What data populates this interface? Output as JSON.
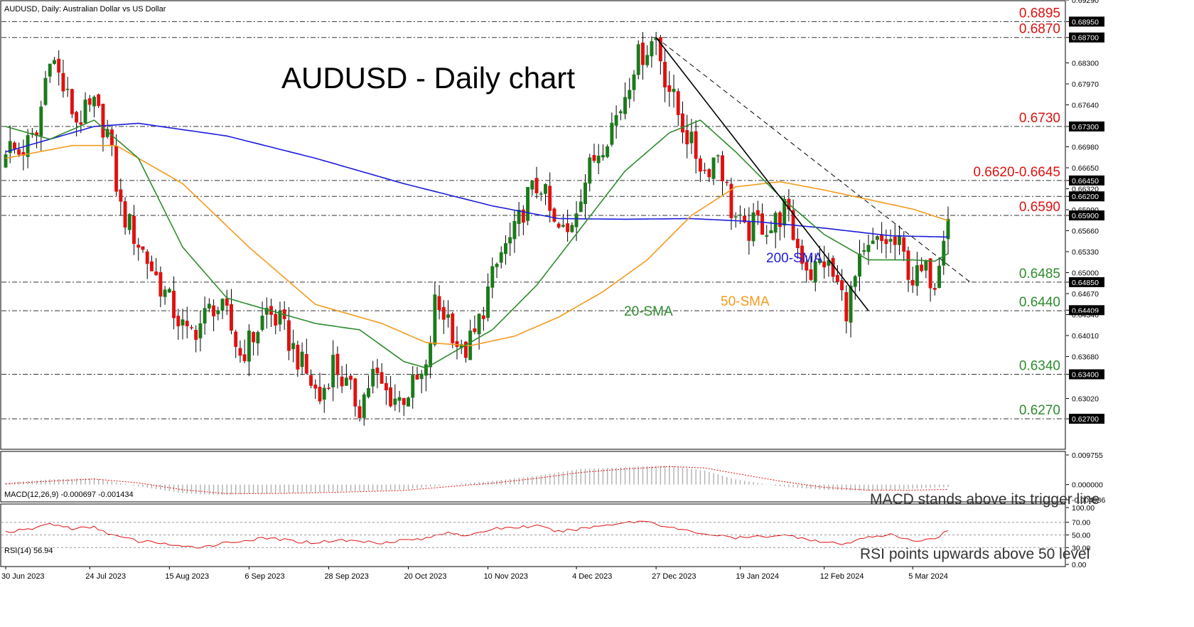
{
  "window": {
    "header": "AUDUSD, Daily:  Australian Dollar vs US Dollar",
    "title": "AUDUSD - Daily chart"
  },
  "colors": {
    "bull": "#1a7a1a",
    "bear": "#e01010",
    "sma20": "#2e8b2e",
    "sma50": "#f59a1c",
    "sma200": "#1c1cdc",
    "level_label": "#e01010",
    "support_label": "#2e8b2e",
    "grid": "#555555"
  },
  "annotations": {
    "sma20": "20-SMA",
    "sma50": "50-SMA",
    "sma200": "200-SMA",
    "macd_note": "MACD stands above its trigger line",
    "rsi_note": "RSI points upwards above 50 level"
  },
  "chart_data": [
    {
      "type": "candlestick",
      "title": "AUDUSD - Daily chart",
      "ylim": [
        0.6222,
        0.6929
      ],
      "y_ticks": [
        "0.69290",
        "0.68950",
        "0.68700",
        "0.68300",
        "0.67970",
        "0.67640",
        "0.67300",
        "0.66980",
        "0.66650",
        "0.66450",
        "0.66320",
        "0.66200",
        "0.65990",
        "0.65900",
        "0.65660",
        "0.65330",
        "0.65000",
        "0.64850",
        "0.64670",
        "0.64409",
        "0.64340",
        "0.64010",
        "0.63680",
        "0.63400",
        "0.63020",
        "0.62700"
      ],
      "x_ticks": [
        "30 Jun 2023",
        "24 Jul 2023",
        "15 Aug 2023",
        "6 Sep 2023",
        "28 Sep 2023",
        "20 Oct 2023",
        "10 Nov 2023",
        "4 Dec 2023",
        "27 Dec 2023",
        "19 Jan 2024",
        "12 Feb 2024",
        "5 Mar 2024"
      ],
      "levels": [
        {
          "value": 0.6895,
          "label": "0.6895",
          "kind": "resistance"
        },
        {
          "value": 0.687,
          "label": "0.6870",
          "kind": "resistance"
        },
        {
          "value": 0.673,
          "label": "0.6730",
          "kind": "resistance"
        },
        {
          "value": 0.6645,
          "label": "0.6620-0.6645",
          "kind": "resistance"
        },
        {
          "value": 0.662,
          "label": "",
          "kind": "resistance"
        },
        {
          "value": 0.659,
          "label": "0.6590",
          "kind": "resistance"
        },
        {
          "value": 0.6485,
          "label": "0.6485",
          "kind": "support"
        },
        {
          "value": 0.644,
          "label": "0.6440",
          "kind": "support"
        },
        {
          "value": 0.634,
          "label": "0.6340",
          "kind": "support"
        },
        {
          "value": 0.627,
          "label": "0.6270",
          "kind": "support"
        }
      ],
      "close_anchors": [
        [
          0,
          0.67
        ],
        [
          3,
          0.6688
        ],
        [
          7,
          0.6715
        ],
        [
          10,
          0.685
        ],
        [
          13,
          0.679
        ],
        [
          16,
          0.674
        ],
        [
          20,
          0.676
        ],
        [
          23,
          0.672
        ],
        [
          26,
          0.66
        ],
        [
          29,
          0.656
        ],
        [
          32,
          0.652
        ],
        [
          35,
          0.648
        ],
        [
          38,
          0.644
        ],
        [
          41,
          0.64
        ],
        [
          44,
          0.642
        ],
        [
          47,
          0.645
        ],
        [
          50,
          0.643
        ],
        [
          53,
          0.637
        ],
        [
          56,
          0.64
        ],
        [
          59,
          0.644
        ],
        [
          62,
          0.642
        ],
        [
          65,
          0.638
        ],
        [
          68,
          0.634
        ],
        [
          71,
          0.63
        ],
        [
          74,
          0.636
        ],
        [
          77,
          0.632
        ],
        [
          80,
          0.629
        ],
        [
          83,
          0.634
        ],
        [
          86,
          0.631
        ],
        [
          89,
          0.63
        ],
        [
          92,
          0.632
        ],
        [
          95,
          0.634
        ],
        [
          97,
          0.645
        ],
        [
          100,
          0.643
        ],
        [
          103,
          0.637
        ],
        [
          106,
          0.64
        ],
        [
          109,
          0.647
        ],
        [
          112,
          0.653
        ],
        [
          115,
          0.656
        ],
        [
          118,
          0.662
        ],
        [
          121,
          0.664
        ],
        [
          124,
          0.657
        ],
        [
          127,
          0.656
        ],
        [
          130,
          0.663
        ],
        [
          133,
          0.668
        ],
        [
          136,
          0.672
        ],
        [
          139,
          0.676
        ],
        [
          142,
          0.683
        ],
        [
          145,
          0.6855
        ],
        [
          147,
          0.687
        ],
        [
          149,
          0.681
        ],
        [
          152,
          0.675
        ],
        [
          155,
          0.67
        ],
        [
          158,
          0.666
        ],
        [
          161,
          0.669
        ],
        [
          164,
          0.66
        ],
        [
          167,
          0.656
        ],
        [
          170,
          0.658
        ],
        [
          173,
          0.657
        ],
        [
          176,
          0.66
        ],
        [
          179,
          0.654
        ],
        [
          182,
          0.65
        ],
        [
          185,
          0.652
        ],
        [
          188,
          0.648
        ],
        [
          190,
          0.6445
        ],
        [
          193,
          0.651
        ],
        [
          196,
          0.654
        ],
        [
          199,
          0.655
        ],
        [
          202,
          0.654
        ],
        [
          205,
          0.649
        ],
        [
          208,
          0.65
        ],
        [
          210,
          0.649
        ],
        [
          212,
          0.657
        ],
        [
          213,
          0.6584
        ]
      ],
      "sma200_anchors": [
        [
          0,
          0.669
        ],
        [
          20,
          0.673
        ],
        [
          30,
          0.6735
        ],
        [
          50,
          0.6715
        ],
        [
          70,
          0.668
        ],
        [
          90,
          0.664
        ],
        [
          110,
          0.6605
        ],
        [
          125,
          0.6585
        ],
        [
          140,
          0.6584
        ],
        [
          155,
          0.6585
        ],
        [
          170,
          0.658
        ],
        [
          185,
          0.657
        ],
        [
          200,
          0.6558
        ],
        [
          213,
          0.6556
        ]
      ],
      "sma50_anchors": [
        [
          0,
          0.668
        ],
        [
          15,
          0.67
        ],
        [
          25,
          0.67
        ],
        [
          40,
          0.664
        ],
        [
          55,
          0.654
        ],
        [
          70,
          0.645
        ],
        [
          85,
          0.642
        ],
        [
          95,
          0.639
        ],
        [
          105,
          0.6385
        ],
        [
          115,
          0.64
        ],
        [
          125,
          0.643
        ],
        [
          135,
          0.647
        ],
        [
          145,
          0.652
        ],
        [
          155,
          0.659
        ],
        [
          165,
          0.6635
        ],
        [
          175,
          0.6643
        ],
        [
          185,
          0.663
        ],
        [
          195,
          0.6615
        ],
        [
          205,
          0.66
        ],
        [
          213,
          0.6582
        ]
      ],
      "sma20_anchors": [
        [
          0,
          0.673
        ],
        [
          10,
          0.671
        ],
        [
          20,
          0.674
        ],
        [
          30,
          0.668
        ],
        [
          40,
          0.654
        ],
        [
          50,
          0.646
        ],
        [
          60,
          0.644
        ],
        [
          70,
          0.642
        ],
        [
          80,
          0.641
        ],
        [
          90,
          0.636
        ],
        [
          95,
          0.635
        ],
        [
          100,
          0.637
        ],
        [
          110,
          0.641
        ],
        [
          120,
          0.648
        ],
        [
          130,
          0.657
        ],
        [
          140,
          0.666
        ],
        [
          150,
          0.672
        ],
        [
          157,
          0.674
        ],
        [
          165,
          0.669
        ],
        [
          175,
          0.662
        ],
        [
          185,
          0.656
        ],
        [
          195,
          0.652
        ],
        [
          205,
          0.652
        ],
        [
          210,
          0.6518
        ],
        [
          213,
          0.653
        ]
      ],
      "trendline_solid": [
        [
          147,
          0.687
        ],
        [
          195,
          0.644
        ]
      ],
      "trendline_dashed": [
        [
          147,
          0.687
        ],
        [
          218,
          0.6485
        ]
      ]
    },
    {
      "type": "histogram",
      "title": "MACD(12,26,9) -0.000697 -0.001434",
      "ylim": [
        -0.004986,
        0.009755
      ],
      "y_ticks": [
        "0.009755",
        "0.000000",
        "-0.004986"
      ],
      "hist_anchors": [
        [
          0,
          0.0005
        ],
        [
          10,
          0.0015
        ],
        [
          20,
          0.0018
        ],
        [
          30,
          -0.0005
        ],
        [
          40,
          -0.0025
        ],
        [
          48,
          -0.003
        ],
        [
          60,
          -0.0025
        ],
        [
          75,
          -0.002
        ],
        [
          90,
          -0.0015
        ],
        [
          100,
          0.0
        ],
        [
          110,
          0.001
        ],
        [
          120,
          0.0025
        ],
        [
          130,
          0.0045
        ],
        [
          140,
          0.005
        ],
        [
          150,
          0.0055
        ],
        [
          158,
          0.004
        ],
        [
          165,
          0.0015
        ],
        [
          175,
          -0.0005
        ],
        [
          185,
          -0.0015
        ],
        [
          195,
          -0.0018
        ],
        [
          205,
          -0.0012
        ],
        [
          213,
          -0.0007
        ]
      ],
      "signal_anchors": [
        [
          0,
          0.0002
        ],
        [
          10,
          0.001
        ],
        [
          20,
          0.0016
        ],
        [
          30,
          0.0005
        ],
        [
          40,
          -0.0015
        ],
        [
          50,
          -0.0026
        ],
        [
          60,
          -0.0026
        ],
        [
          75,
          -0.0022
        ],
        [
          90,
          -0.0017
        ],
        [
          100,
          -0.0006
        ],
        [
          110,
          0.0004
        ],
        [
          120,
          0.0018
        ],
        [
          130,
          0.0035
        ],
        [
          140,
          0.0045
        ],
        [
          150,
          0.0052
        ],
        [
          158,
          0.0048
        ],
        [
          165,
          0.0032
        ],
        [
          175,
          0.001
        ],
        [
          185,
          -0.0008
        ],
        [
          195,
          -0.0016
        ],
        [
          205,
          -0.0016
        ],
        [
          213,
          -0.0014
        ]
      ]
    },
    {
      "type": "line",
      "title": "RSI(14) 56.94",
      "ylim": [
        0,
        100
      ],
      "y_ticks": [
        "100.00",
        "70.00",
        "50.00",
        "30.00",
        "0.00"
      ],
      "rsi_anchors": [
        [
          0,
          55
        ],
        [
          5,
          58
        ],
        [
          10,
          68
        ],
        [
          15,
          60
        ],
        [
          20,
          62
        ],
        [
          25,
          48
        ],
        [
          30,
          40
        ],
        [
          35,
          38
        ],
        [
          40,
          30
        ],
        [
          45,
          32
        ],
        [
          50,
          38
        ],
        [
          55,
          42
        ],
        [
          60,
          45
        ],
        [
          65,
          40
        ],
        [
          70,
          38
        ],
        [
          75,
          42
        ],
        [
          80,
          40
        ],
        [
          85,
          38
        ],
        [
          90,
          42
        ],
        [
          95,
          44
        ],
        [
          100,
          55
        ],
        [
          105,
          48
        ],
        [
          110,
          60
        ],
        [
          115,
          62
        ],
        [
          120,
          64
        ],
        [
          125,
          55
        ],
        [
          130,
          60
        ],
        [
          135,
          65
        ],
        [
          140,
          70
        ],
        [
          145,
          72
        ],
        [
          150,
          62
        ],
        [
          155,
          55
        ],
        [
          160,
          50
        ],
        [
          165,
          45
        ],
        [
          170,
          47
        ],
        [
          175,
          50
        ],
        [
          180,
          46
        ],
        [
          185,
          38
        ],
        [
          190,
          35
        ],
        [
          195,
          48
        ],
        [
          200,
          50
        ],
        [
          205,
          40
        ],
        [
          210,
          45
        ],
        [
          213,
          56.94
        ]
      ]
    }
  ]
}
